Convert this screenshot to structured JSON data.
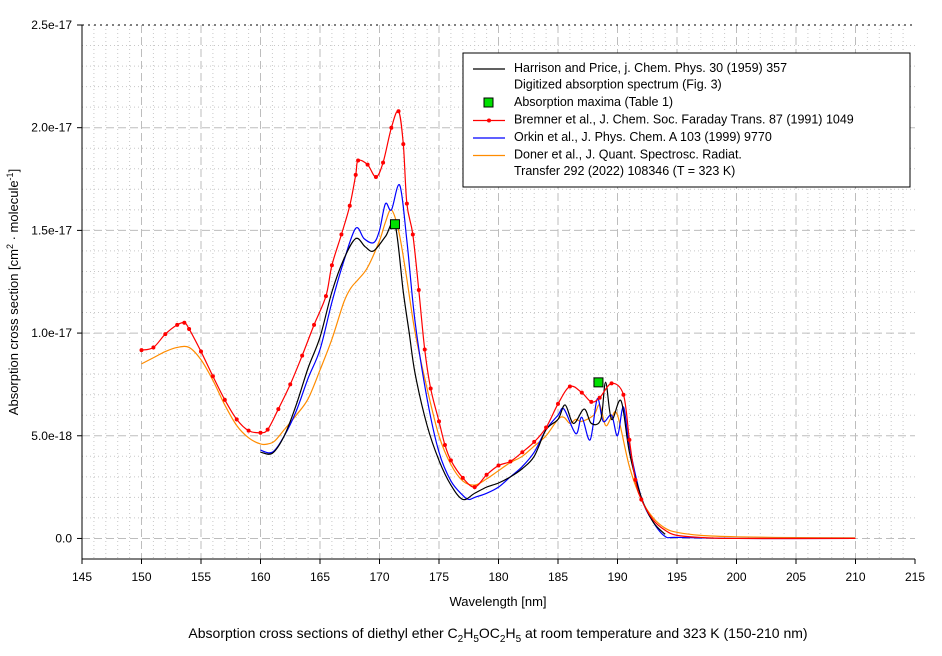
{
  "chart_data": {
    "type": "line",
    "caption": {
      "pre": "Absorption cross sections of diethyl ether C",
      "s1": "2",
      "m1": "H",
      "s2": "5",
      "m2": "OC",
      "s3": "2",
      "m3": "H",
      "s4": "5",
      "post": " at room temperature and 323 K (150-210 nm)"
    },
    "xlabel": "Wavelength [nm]",
    "ylabel": {
      "pre": "Absorption cross section [cm",
      "sup1": "2",
      "mid": " · molecule",
      "sup2": "-1",
      "post": "]"
    },
    "xlim": [
      145,
      215
    ],
    "ylim": [
      -1e-18,
      2.5e-17
    ],
    "y_unit_scale": 1e-18,
    "xticks": [
      145,
      150,
      155,
      160,
      165,
      170,
      175,
      180,
      185,
      190,
      195,
      200,
      205,
      210,
      215
    ],
    "yticks": [
      {
        "v": 0,
        "label": "0.0"
      },
      {
        "v": 5,
        "label": "5.0e-18"
      },
      {
        "v": 10,
        "label": "1.0e-17"
      },
      {
        "v": 15,
        "label": "1.5e-17"
      },
      {
        "v": 20,
        "label": "2.0e-17"
      },
      {
        "v": 25,
        "label": "2.5e-17"
      }
    ],
    "grid": true,
    "legend_position": "top-right",
    "legend": [
      {
        "lines": [
          "Harrison and Price, j. Chem. Phys. 30 (1959) 357",
          "Digitized absorption spectrum (Fig. 3)"
        ],
        "color": "#000000",
        "kind": "line"
      },
      {
        "lines": [
          "Absorption maxima (Table 1)"
        ],
        "color": "#00e000",
        "kind": "square"
      },
      {
        "lines": [
          "Bremner et al., J. Chem. Soc. Faraday Trans. 87 (1991) 1049"
        ],
        "color": "#ff0000",
        "kind": "line-marker"
      },
      {
        "lines": [
          "Orkin et al., J. Phys. Chem. A 103 (1999) 9770"
        ],
        "color": "#0000ff",
        "kind": "line"
      },
      {
        "lines": [
          "Doner et al., J. Quant. Spectrosc. Radiat.",
          "Transfer 292 (2022) 108346  (T = 323 K)"
        ],
        "color": "#ff8c00",
        "kind": "line"
      }
    ],
    "series": [
      {
        "name": "Doner",
        "color": "#ff8c00",
        "markers": false,
        "points": [
          [
            150,
            8.5
          ],
          [
            151,
            8.8
          ],
          [
            152,
            9.1
          ],
          [
            153,
            9.3
          ],
          [
            154,
            9.3
          ],
          [
            155,
            8.7
          ],
          [
            156,
            7.7
          ],
          [
            157,
            6.5
          ],
          [
            158,
            5.5
          ],
          [
            159,
            4.9
          ],
          [
            160,
            4.6
          ],
          [
            160.6,
            4.6
          ],
          [
            161.2,
            4.75
          ],
          [
            162,
            5.3
          ],
          [
            163,
            6.0
          ],
          [
            164,
            6.8
          ],
          [
            165,
            8.2
          ],
          [
            166,
            9.7
          ],
          [
            167,
            11.5
          ],
          [
            167.6,
            12.2
          ],
          [
            168.2,
            12.6
          ],
          [
            169,
            13.2
          ],
          [
            170,
            14.5
          ],
          [
            170.5,
            15.4
          ],
          [
            171,
            16.0
          ],
          [
            171.6,
            15.0
          ],
          [
            172.2,
            13.0
          ],
          [
            173,
            10.0
          ],
          [
            174,
            7.3
          ],
          [
            175,
            5.0
          ],
          [
            176,
            3.6
          ],
          [
            177,
            2.8
          ],
          [
            178,
            2.6
          ],
          [
            179,
            2.9
          ],
          [
            180,
            3.3
          ],
          [
            181,
            3.7
          ],
          [
            182,
            4.0
          ],
          [
            183,
            4.5
          ],
          [
            184,
            5.0
          ],
          [
            185,
            5.8
          ],
          [
            185.5,
            5.9
          ],
          [
            186,
            5.6
          ],
          [
            186.5,
            5.8
          ],
          [
            187,
            5.7
          ],
          [
            188,
            6.0
          ],
          [
            188.5,
            6.5
          ],
          [
            189,
            5.5
          ],
          [
            189.5,
            5.9
          ],
          [
            190,
            6.0
          ],
          [
            191,
            3.5
          ],
          [
            192,
            1.9
          ],
          [
            193,
            1.0
          ],
          [
            194,
            0.5
          ],
          [
            195,
            0.3
          ],
          [
            197,
            0.15
          ],
          [
            200,
            0.08
          ],
          [
            205,
            0.04
          ],
          [
            210,
            0.03
          ]
        ]
      },
      {
        "name": "Orkin",
        "color": "#0000ff",
        "markers": false,
        "points": [
          [
            160,
            4.3
          ],
          [
            161,
            4.2
          ],
          [
            162,
            5.0
          ],
          [
            163,
            6.2
          ],
          [
            164,
            7.8
          ],
          [
            165,
            9.2
          ],
          [
            166,
            11.5
          ],
          [
            167,
            13.5
          ],
          [
            168,
            15.1
          ],
          [
            168.7,
            14.6
          ],
          [
            169.5,
            14.4
          ],
          [
            170,
            15.0
          ],
          [
            170.5,
            16.3
          ],
          [
            171,
            16.0
          ],
          [
            171.7,
            17.2
          ],
          [
            172.3,
            14.5
          ],
          [
            173,
            10.5
          ],
          [
            174,
            6.8
          ],
          [
            175,
            4.2
          ],
          [
            176,
            2.8
          ],
          [
            177,
            2.1
          ],
          [
            177.5,
            1.9
          ],
          [
            178,
            2.0
          ],
          [
            179,
            2.2
          ],
          [
            180,
            2.5
          ],
          [
            181,
            3.0
          ],
          [
            182,
            3.5
          ],
          [
            183,
            4.2
          ],
          [
            184,
            5.3
          ],
          [
            185,
            6.0
          ],
          [
            185.5,
            6.3
          ],
          [
            186.5,
            5.1
          ],
          [
            187,
            5.9
          ],
          [
            187.7,
            4.8
          ],
          [
            188.3,
            6.8
          ],
          [
            188.8,
            5.7
          ],
          [
            189.5,
            6.0
          ],
          [
            190,
            5.0
          ],
          [
            190.5,
            6.4
          ],
          [
            191,
            4.5
          ],
          [
            192,
            2.0
          ],
          [
            193,
            0.8
          ],
          [
            194,
            0.1
          ],
          [
            195,
            0.05
          ],
          [
            200,
            0
          ],
          [
            210,
            0
          ]
        ]
      },
      {
        "name": "Harrison",
        "color": "#000000",
        "markers": false,
        "points": [
          [
            160,
            4.2
          ],
          [
            161,
            4.15
          ],
          [
            162,
            5.0
          ],
          [
            163,
            6.5
          ],
          [
            164,
            8.3
          ],
          [
            165,
            9.8
          ],
          [
            166,
            12.0
          ],
          [
            167,
            13.6
          ],
          [
            168,
            14.6
          ],
          [
            168.8,
            14.2
          ],
          [
            169.5,
            14.0
          ],
          [
            170.5,
            14.7
          ],
          [
            171.3,
            15.3
          ],
          [
            172,
            12.0
          ],
          [
            172.5,
            10.0
          ],
          [
            173,
            8.0
          ],
          [
            174,
            5.5
          ],
          [
            175,
            3.8
          ],
          [
            176,
            2.6
          ],
          [
            177,
            1.9
          ],
          [
            178,
            2.2
          ],
          [
            179,
            2.5
          ],
          [
            180,
            2.7
          ],
          [
            181,
            3.0
          ],
          [
            182,
            3.4
          ],
          [
            183,
            4.0
          ],
          [
            184,
            5.3
          ],
          [
            185,
            5.8
          ],
          [
            185.6,
            6.5
          ],
          [
            186.3,
            5.6
          ],
          [
            187.2,
            6.3
          ],
          [
            187.8,
            5.6
          ],
          [
            188.6,
            5.8
          ],
          [
            189,
            7.6
          ],
          [
            189.5,
            5.8
          ],
          [
            190.3,
            6.7
          ],
          [
            191,
            4.2
          ],
          [
            192,
            2.0
          ],
          [
            193,
            0.8
          ],
          [
            194,
            0.2
          ]
        ]
      },
      {
        "name": "Bremner",
        "color": "#ff0000",
        "markers": true,
        "points": [
          [
            150,
            9.17
          ],
          [
            151,
            9.3
          ],
          [
            152,
            9.95
          ],
          [
            153,
            10.4
          ],
          [
            153.6,
            10.5
          ],
          [
            154,
            10.2
          ],
          [
            155,
            9.1
          ],
          [
            156,
            7.9
          ],
          [
            157,
            6.75
          ],
          [
            158,
            5.8
          ],
          [
            159,
            5.25
          ],
          [
            160,
            5.15
          ],
          [
            160.6,
            5.3
          ],
          [
            161.5,
            6.3
          ],
          [
            162.5,
            7.5
          ],
          [
            163.5,
            8.9
          ],
          [
            164.5,
            10.4
          ],
          [
            165.5,
            11.8
          ],
          [
            166,
            13.3
          ],
          [
            166.8,
            14.8
          ],
          [
            167.5,
            16.2
          ],
          [
            168,
            17.7
          ],
          [
            168.2,
            18.4
          ],
          [
            169,
            18.2
          ],
          [
            169.7,
            17.6
          ],
          [
            170.3,
            18.3
          ],
          [
            171,
            20.0
          ],
          [
            171.6,
            20.8
          ],
          [
            172,
            19.2
          ],
          [
            172.3,
            16.3
          ],
          [
            172.8,
            14.8
          ],
          [
            173.3,
            12.1
          ],
          [
            173.8,
            9.2
          ],
          [
            174.3,
            7.3
          ],
          [
            175,
            5.7
          ],
          [
            175.5,
            4.55
          ],
          [
            176,
            3.8
          ],
          [
            177,
            2.95
          ],
          [
            178,
            2.5
          ],
          [
            179,
            3.1
          ],
          [
            180,
            3.55
          ],
          [
            181,
            3.75
          ],
          [
            182,
            4.2
          ],
          [
            183,
            4.7
          ],
          [
            184,
            5.4
          ],
          [
            185,
            6.55
          ],
          [
            186,
            7.4
          ],
          [
            187,
            7.1
          ],
          [
            187.8,
            6.65
          ],
          [
            188.5,
            6.85
          ],
          [
            189.5,
            7.55
          ],
          [
            190.5,
            7.0
          ],
          [
            191,
            4.8
          ],
          [
            191.5,
            2.85
          ],
          [
            192,
            1.9
          ],
          [
            193,
            0.9
          ],
          [
            194,
            0.4
          ],
          [
            195,
            0.15
          ],
          [
            197,
            0.05
          ],
          [
            200,
            0
          ],
          [
            210,
            0
          ]
        ]
      }
    ],
    "maxima": [
      [
        171.3,
        15.3
      ],
      [
        188.4,
        7.6
      ]
    ]
  }
}
